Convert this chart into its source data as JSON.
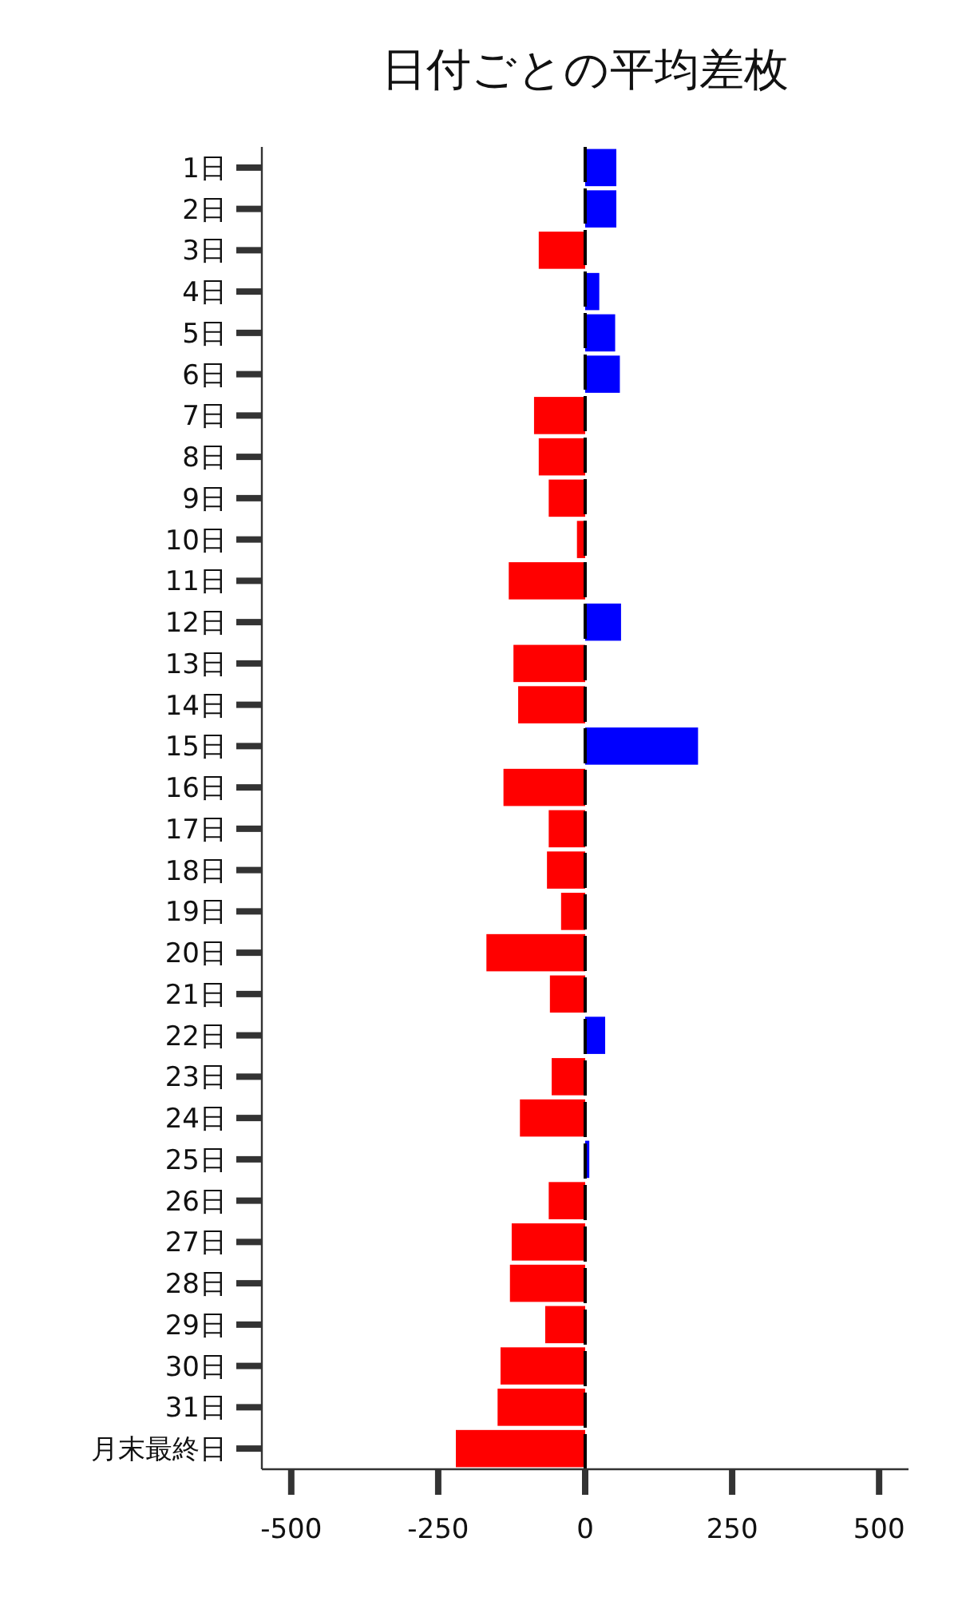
{
  "chart_data": {
    "type": "bar",
    "orientation": "horizontal",
    "title": "日付ごとの平均差枚",
    "categories": [
      "1日",
      "2日",
      "3日",
      "4日",
      "5日",
      "6日",
      "7日",
      "8日",
      "9日",
      "10日",
      "11日",
      "12日",
      "13日",
      "14日",
      "15日",
      "16日",
      "17日",
      "18日",
      "19日",
      "20日",
      "21日",
      "22日",
      "23日",
      "24日",
      "25日",
      "26日",
      "27日",
      "28日",
      "29日",
      "30日",
      "31日",
      "月末最終日"
    ],
    "values": [
      53,
      53,
      -79,
      24,
      51,
      59,
      -87,
      -79,
      -62,
      -14,
      -130,
      61,
      -122,
      -114,
      192,
      -139,
      -62,
      -65,
      -41,
      -168,
      -60,
      34,
      -57,
      -111,
      7,
      -62,
      -125,
      -128,
      -68,
      -144,
      -149,
      -220
    ],
    "colors": [
      "#0000ff",
      "#0000ff",
      "#ff0000",
      "#0000ff",
      "#0000ff",
      "#0000ff",
      "#ff0000",
      "#ff0000",
      "#ff0000",
      "#ff0000",
      "#ff0000",
      "#0000ff",
      "#ff0000",
      "#ff0000",
      "#0000ff",
      "#ff0000",
      "#ff0000",
      "#ff0000",
      "#ff0000",
      "#ff0000",
      "#ff0000",
      "#0000ff",
      "#ff0000",
      "#ff0000",
      "#0000ff",
      "#ff0000",
      "#ff0000",
      "#ff0000",
      "#ff0000",
      "#ff0000",
      "#ff0000",
      "#ff0000"
    ],
    "xlim": [
      -550,
      550
    ],
    "xticks": [
      -500,
      -250,
      0,
      250,
      500
    ],
    "ref_lines": [
      {
        "axis": "x",
        "value": 0,
        "color": "#000000",
        "line_style": "dashed"
      }
    ],
    "grid": false
  }
}
